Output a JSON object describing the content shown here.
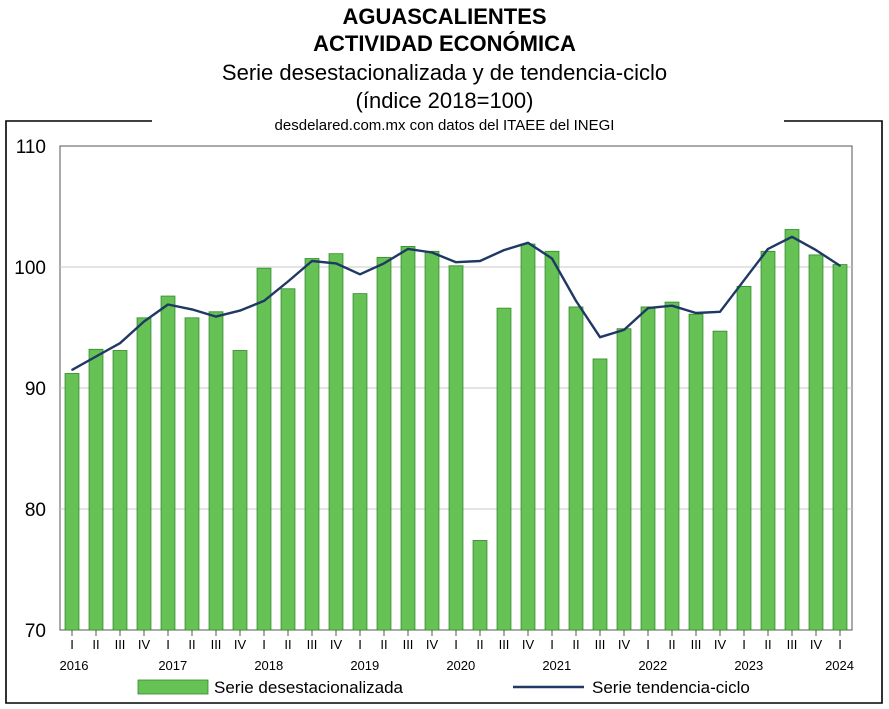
{
  "header": {
    "title_line1": "AGUASCALIENTES",
    "title_line2": "ACTIVIDAD ECONÓMICA",
    "subtitle_line1": "Serie desestacionalizada y de tendencia-ciclo",
    "subtitle_line2": "(índice 2018=100)",
    "source": "desdelared.com.mx con datos del ITAEE del INEGI"
  },
  "colors": {
    "bar_fill": "#66c254",
    "bar_stroke": "#2f8a2a",
    "line": "#1f3864",
    "grid": "#c8c8c8"
  },
  "chart_data": {
    "type": "bar",
    "title": "AGUASCALIENTES ACTIVIDAD ECONÓMICA",
    "subtitle": "Serie desestacionalizada y de tendencia-ciclo (índice 2018=100)",
    "categories": [
      "I",
      "II",
      "III",
      "IV",
      "I",
      "II",
      "III",
      "IV",
      "I",
      "II",
      "III",
      "IV",
      "I",
      "II",
      "III",
      "IV",
      "I",
      "II",
      "III",
      "IV",
      "I",
      "II",
      "III",
      "IV",
      "I",
      "II",
      "III",
      "IV",
      "I",
      "II",
      "III",
      "IV",
      "I"
    ],
    "years": [
      {
        "label": "2016",
        "start": 0
      },
      {
        "label": "2017",
        "start": 4
      },
      {
        "label": "2018",
        "start": 8
      },
      {
        "label": "2019",
        "start": 12
      },
      {
        "label": "2020",
        "start": 16
      },
      {
        "label": "2021",
        "start": 20
      },
      {
        "label": "2022",
        "start": 24
      },
      {
        "label": "2023",
        "start": 28
      },
      {
        "label": "2024",
        "start": 32
      }
    ],
    "series": [
      {
        "name": "Serie desestacionalizada",
        "type": "bar",
        "values": [
          91.2,
          93.2,
          93.1,
          95.8,
          97.6,
          95.8,
          96.3,
          93.1,
          99.9,
          98.2,
          100.7,
          101.1,
          97.8,
          100.8,
          101.7,
          101.3,
          100.1,
          77.4,
          96.6,
          101.9,
          101.3,
          96.7,
          92.4,
          94.9,
          96.7,
          97.1,
          96.1,
          94.7,
          98.4,
          101.3,
          103.1,
          101.0,
          100.2
        ]
      },
      {
        "name": "Serie tendencia-ciclo",
        "type": "line",
        "values": [
          91.5,
          92.6,
          93.7,
          95.5,
          96.9,
          96.5,
          95.9,
          96.4,
          97.2,
          98.8,
          100.5,
          100.3,
          99.4,
          100.3,
          101.5,
          101.2,
          100.4,
          100.5,
          101.4,
          102.0,
          100.7,
          97.2,
          94.2,
          94.8,
          96.6,
          96.8,
          96.2,
          96.3,
          98.9,
          101.5,
          102.5,
          101.4,
          100.1
        ]
      }
    ],
    "ylim": [
      70,
      110
    ],
    "yticks": [
      70,
      80,
      90,
      100,
      110
    ],
    "grid": "horizontal",
    "legend_position": "bottom"
  }
}
